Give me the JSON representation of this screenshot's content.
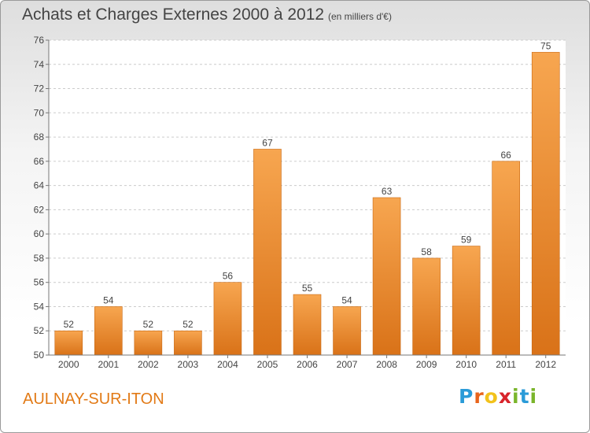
{
  "title": "Achats et Charges Externes 2000 à 2012",
  "unit_note": "(en milliers d'€)",
  "place": "AULNAY-SUR-ITON",
  "logo": {
    "text": "Proxiti",
    "letter_colors": [
      "#2a9bd8",
      "#e8641b",
      "#f2c21b",
      "#d8242b",
      "#7ab52b",
      "#2a9bd8",
      "#7ab52b"
    ]
  },
  "colors": {
    "bar_light": "#f7a650",
    "bar_dark": "#d97218",
    "axis": "#777777",
    "grid": "#cccccc",
    "text": "#444444"
  },
  "chart_data": {
    "type": "bar",
    "title": "Achats et Charges Externes 2000 à 2012",
    "subtitle": "(en milliers d'€)",
    "categories": [
      "2000",
      "2001",
      "2002",
      "2003",
      "2004",
      "2005",
      "2006",
      "2007",
      "2008",
      "2009",
      "2010",
      "2011",
      "2012"
    ],
    "values": [
      52,
      54,
      52,
      52,
      56,
      67,
      55,
      54,
      63,
      58,
      59,
      66,
      75
    ],
    "ylim": [
      50,
      76
    ],
    "yticks": [
      50,
      52,
      54,
      56,
      58,
      60,
      62,
      64,
      66,
      68,
      70,
      72,
      74,
      76
    ],
    "grid": "horizontal-dashed",
    "xlabel": "",
    "ylabel": ""
  }
}
